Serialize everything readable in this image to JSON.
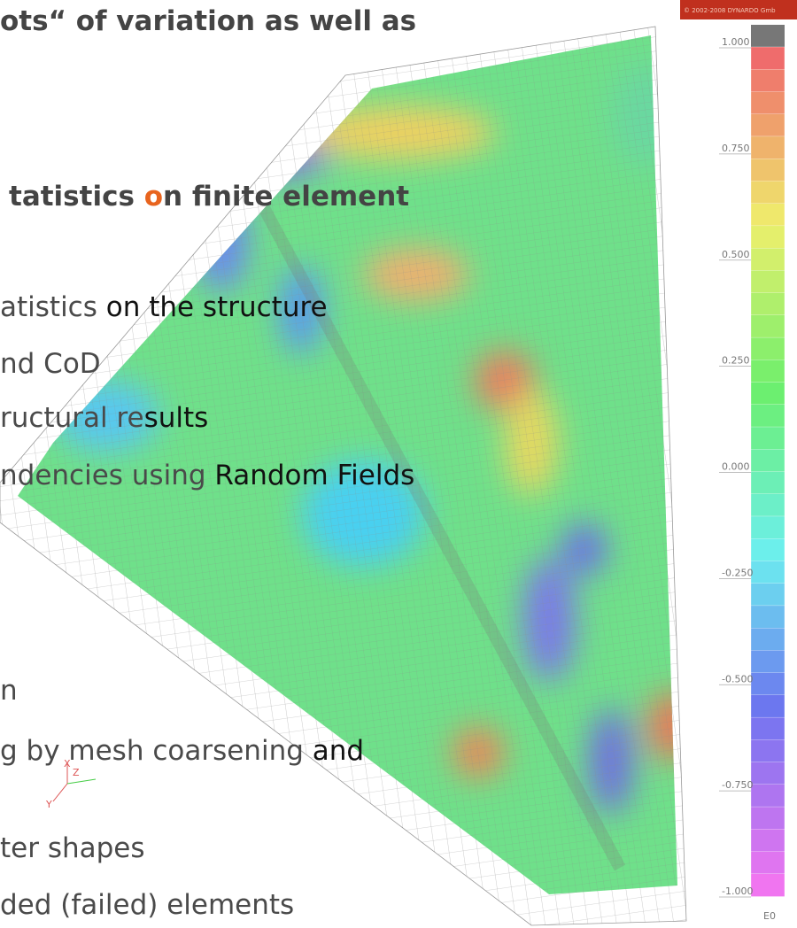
{
  "slide_lines": [
    [
      "ots“ of variation as well as"
    ],
    [
      "tatistics ",
      "o",
      "n finite element"
    ],
    [
      "atistics ",
      "on the structure"
    ],
    [
      "nd CoD"
    ],
    [
      "ructural re",
      "sults"
    ],
    [
      "ndencies using ",
      "Random Fields"
    ],
    [
      "n"
    ],
    [
      "g by mesh coarsening ",
      "and"
    ],
    [
      "ter shapes"
    ],
    [
      "ded (failed) elements"
    ]
  ],
  "colorbar": {
    "copyright": "© 2002-2008 DYNARDO Gmb",
    "ticks": [
      {
        "value": 1,
        "label": "1.000"
      },
      {
        "value": 0.75,
        "label": "0.750"
      },
      {
        "value": 0.5,
        "label": "0.500"
      },
      {
        "value": 0.25,
        "label": "0.250"
      },
      {
        "value": 0,
        "label": "0.000"
      },
      {
        "value": -0.25,
        "label": "-0.250"
      },
      {
        "value": -0.5,
        "label": "-0.500"
      },
      {
        "value": -0.75,
        "label": "-0.750"
      },
      {
        "value": -1,
        "label": "-1.000"
      }
    ],
    "unit": "E0"
  },
  "axis_triad": {
    "x": "X",
    "z": "Z",
    "y": "Y"
  }
}
